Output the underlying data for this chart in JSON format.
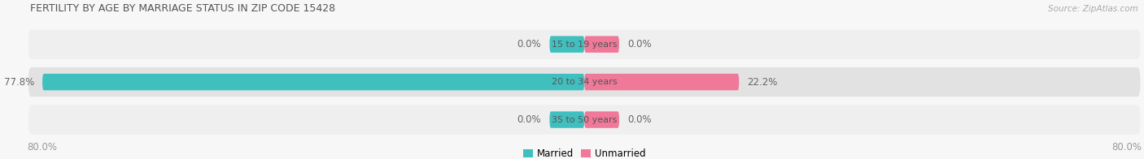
{
  "title": "FERTILITY BY AGE BY MARRIAGE STATUS IN ZIP CODE 15428",
  "source": "Source: ZipAtlas.com",
  "rows": [
    {
      "label": "15 to 19 years",
      "married": 0.0,
      "unmarried": 0.0
    },
    {
      "label": "20 to 34 years",
      "married": 77.8,
      "unmarried": 22.2
    },
    {
      "label": "35 to 50 years",
      "married": 0.0,
      "unmarried": 0.0
    }
  ],
  "max_val": 80.0,
  "married_color": "#40bfbf",
  "unmarried_color": "#f07898",
  "row_bg_color_odd": "#efefef",
  "row_bg_color_even": "#e2e2e2",
  "title_color": "#555555",
  "label_color": "#666666",
  "axis_label_color": "#999999",
  "source_color": "#aaaaaa",
  "bg_color": "#f7f7f7",
  "x_left_label": "80.0%",
  "x_right_label": "80.0%",
  "small_bar_width": 5.0,
  "figsize": [
    14.06,
    1.96
  ],
  "dpi": 100
}
